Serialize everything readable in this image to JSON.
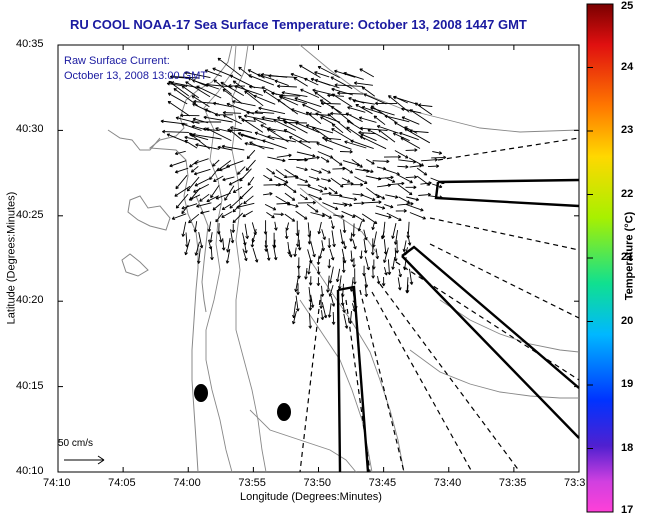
{
  "title": "RU COOL  NOAA-17  Sea Surface Temperature:  October 13, 2008 1447 GMT",
  "annotation": {
    "line1": "Raw Surface Current:",
    "line2": "October 13, 2008 13:00 GMT"
  },
  "scale": {
    "label": "50 cm/s"
  },
  "axes": {
    "xlabel": "Longitude (Degrees:Minutes)",
    "ylabel": "Latitude (Degrees:Minutes)",
    "x_ticks": [
      "74:10",
      "74:05",
      "74:00",
      "73:55",
      "73:50",
      "73:45",
      "73:40",
      "73:35",
      "73:3"
    ],
    "y_ticks": [
      "40:35",
      "40:30",
      "40:25",
      "40:20",
      "40:15",
      "40:10"
    ]
  },
  "colorbar": {
    "label": "Temperature (°C)",
    "ticks": [
      "25",
      "24",
      "23",
      "22",
      "21",
      "20",
      "19",
      "18",
      "17"
    ]
  },
  "colors": {
    "title": "#1a1aa0",
    "contour": "#888888",
    "vector": "#000000"
  }
}
